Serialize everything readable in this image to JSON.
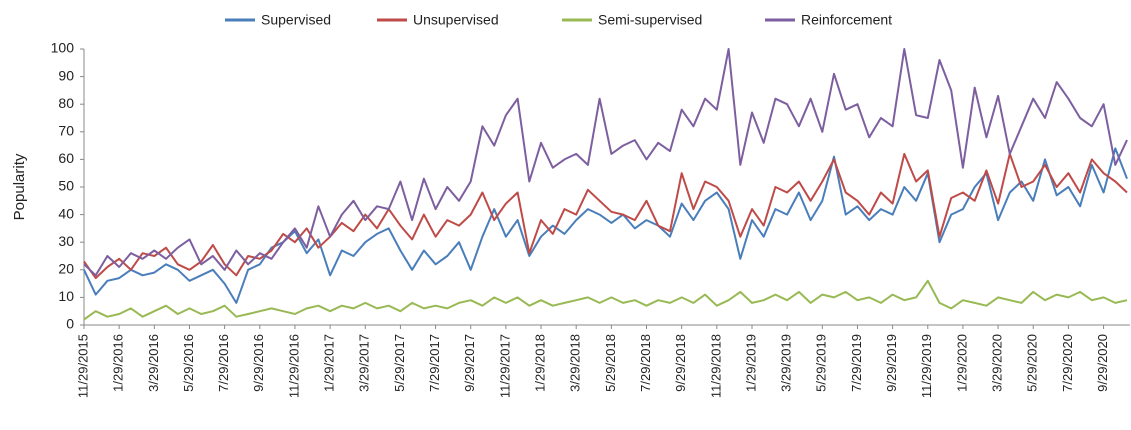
{
  "chart_data": {
    "type": "line",
    "y_label": "Popularity",
    "categories": [
      "11/29/2015",
      null,
      null,
      "1/29/2016",
      null,
      null,
      "3/29/2016",
      null,
      null,
      "5/29/2016",
      null,
      null,
      "7/29/2016",
      null,
      null,
      "9/29/2016",
      null,
      null,
      "11/29/2016",
      null,
      null,
      "1/29/2017",
      null,
      null,
      "3/29/2017",
      null,
      null,
      "5/29/2017",
      null,
      null,
      "7/29/2017",
      null,
      null,
      "9/29/2017",
      null,
      null,
      "11/29/2017",
      null,
      null,
      "1/29/2018",
      null,
      null,
      "3/29/2018",
      null,
      null,
      "5/29/2018",
      null,
      null,
      "7/29/2018",
      null,
      null,
      "9/29/2018",
      null,
      null,
      "11/29/2018",
      null,
      null,
      "1/29/2019",
      null,
      null,
      "3/29/2019",
      null,
      null,
      "5/29/2019",
      null,
      null,
      "7/29/2019",
      null,
      null,
      "9/29/2019",
      null,
      null,
      "11/29/2019",
      null,
      null,
      "1/29/2020",
      null,
      null,
      "3/29/2020",
      null,
      null,
      "5/29/2020",
      null,
      null,
      "7/29/2020",
      null,
      null,
      "9/29/2020",
      null,
      null
    ],
    "series": [
      {
        "name": "Supervised",
        "color": "#4a7ebb",
        "values": [
          20,
          11,
          16,
          17,
          20,
          18,
          19,
          22,
          20,
          16,
          18,
          20,
          15,
          8,
          20,
          22,
          28,
          30,
          34,
          26,
          31,
          18,
          27,
          25,
          30,
          33,
          35,
          27,
          20,
          27,
          22,
          25,
          30,
          20,
          32,
          42,
          32,
          38,
          25,
          32,
          36,
          33,
          38,
          42,
          40,
          37,
          40,
          35,
          38,
          36,
          32,
          44,
          38,
          45,
          48,
          42,
          24,
          38,
          32,
          42,
          40,
          48,
          38,
          45,
          61,
          40,
          43,
          38,
          42,
          40,
          50,
          45,
          55,
          30,
          40,
          42,
          50,
          55,
          38,
          48,
          52,
          45,
          60,
          47,
          50,
          43,
          58,
          48,
          64,
          53
        ]
      },
      {
        "name": "Unsupervised",
        "color": "#be4b48",
        "values": [
          23,
          17,
          21,
          24,
          20,
          26,
          25,
          28,
          22,
          20,
          23,
          29,
          22,
          18,
          25,
          24,
          27,
          33,
          30,
          35,
          28,
          32,
          37,
          34,
          40,
          35,
          42,
          36,
          31,
          40,
          32,
          38,
          36,
          40,
          48,
          38,
          44,
          48,
          26,
          38,
          33,
          42,
          40,
          49,
          45,
          41,
          40,
          38,
          45,
          36,
          34,
          55,
          42,
          52,
          50,
          45,
          32,
          42,
          36,
          50,
          48,
          52,
          45,
          52,
          60,
          48,
          45,
          40,
          48,
          44,
          62,
          52,
          56,
          32,
          46,
          48,
          45,
          56,
          44,
          62,
          50,
          52,
          58,
          50,
          55,
          48,
          60,
          55,
          52,
          48
        ]
      },
      {
        "name": "Semi-supervised",
        "color": "#98b954",
        "values": [
          2,
          5,
          3,
          4,
          6,
          3,
          5,
          7,
          4,
          6,
          4,
          5,
          7,
          3,
          4,
          5,
          6,
          5,
          4,
          6,
          7,
          5,
          7,
          6,
          8,
          6,
          7,
          5,
          8,
          6,
          7,
          6,
          8,
          9,
          7,
          10,
          8,
          10,
          7,
          9,
          7,
          8,
          9,
          10,
          8,
          10,
          8,
          9,
          7,
          9,
          8,
          10,
          8,
          11,
          7,
          9,
          12,
          8,
          9,
          11,
          9,
          12,
          8,
          11,
          10,
          12,
          9,
          10,
          8,
          11,
          9,
          10,
          16,
          8,
          6,
          9,
          8,
          7,
          10,
          9,
          8,
          12,
          9,
          11,
          10,
          12,
          9,
          10,
          8,
          9
        ]
      },
      {
        "name": "Reinforcement",
        "color": "#7d5fa0",
        "values": [
          22,
          18,
          25,
          21,
          26,
          24,
          27,
          24,
          28,
          31,
          22,
          25,
          20,
          27,
          22,
          26,
          24,
          30,
          35,
          28,
          43,
          32,
          40,
          45,
          38,
          43,
          42,
          52,
          38,
          53,
          42,
          50,
          45,
          52,
          72,
          65,
          76,
          82,
          52,
          66,
          57,
          60,
          62,
          58,
          82,
          62,
          65,
          67,
          60,
          66,
          63,
          78,
          72,
          82,
          78,
          100,
          58,
          77,
          66,
          82,
          80,
          72,
          82,
          70,
          91,
          78,
          80,
          68,
          75,
          72,
          100,
          76,
          75,
          96,
          85,
          57,
          86,
          68,
          83,
          62,
          72,
          82,
          75,
          88,
          82,
          75,
          72,
          80,
          58,
          67
        ]
      }
    ],
    "ylim": [
      0,
      100
    ],
    "yticks": [
      0,
      10,
      20,
      30,
      40,
      50,
      60,
      70,
      80,
      90,
      100
    ],
    "grid": false
  }
}
